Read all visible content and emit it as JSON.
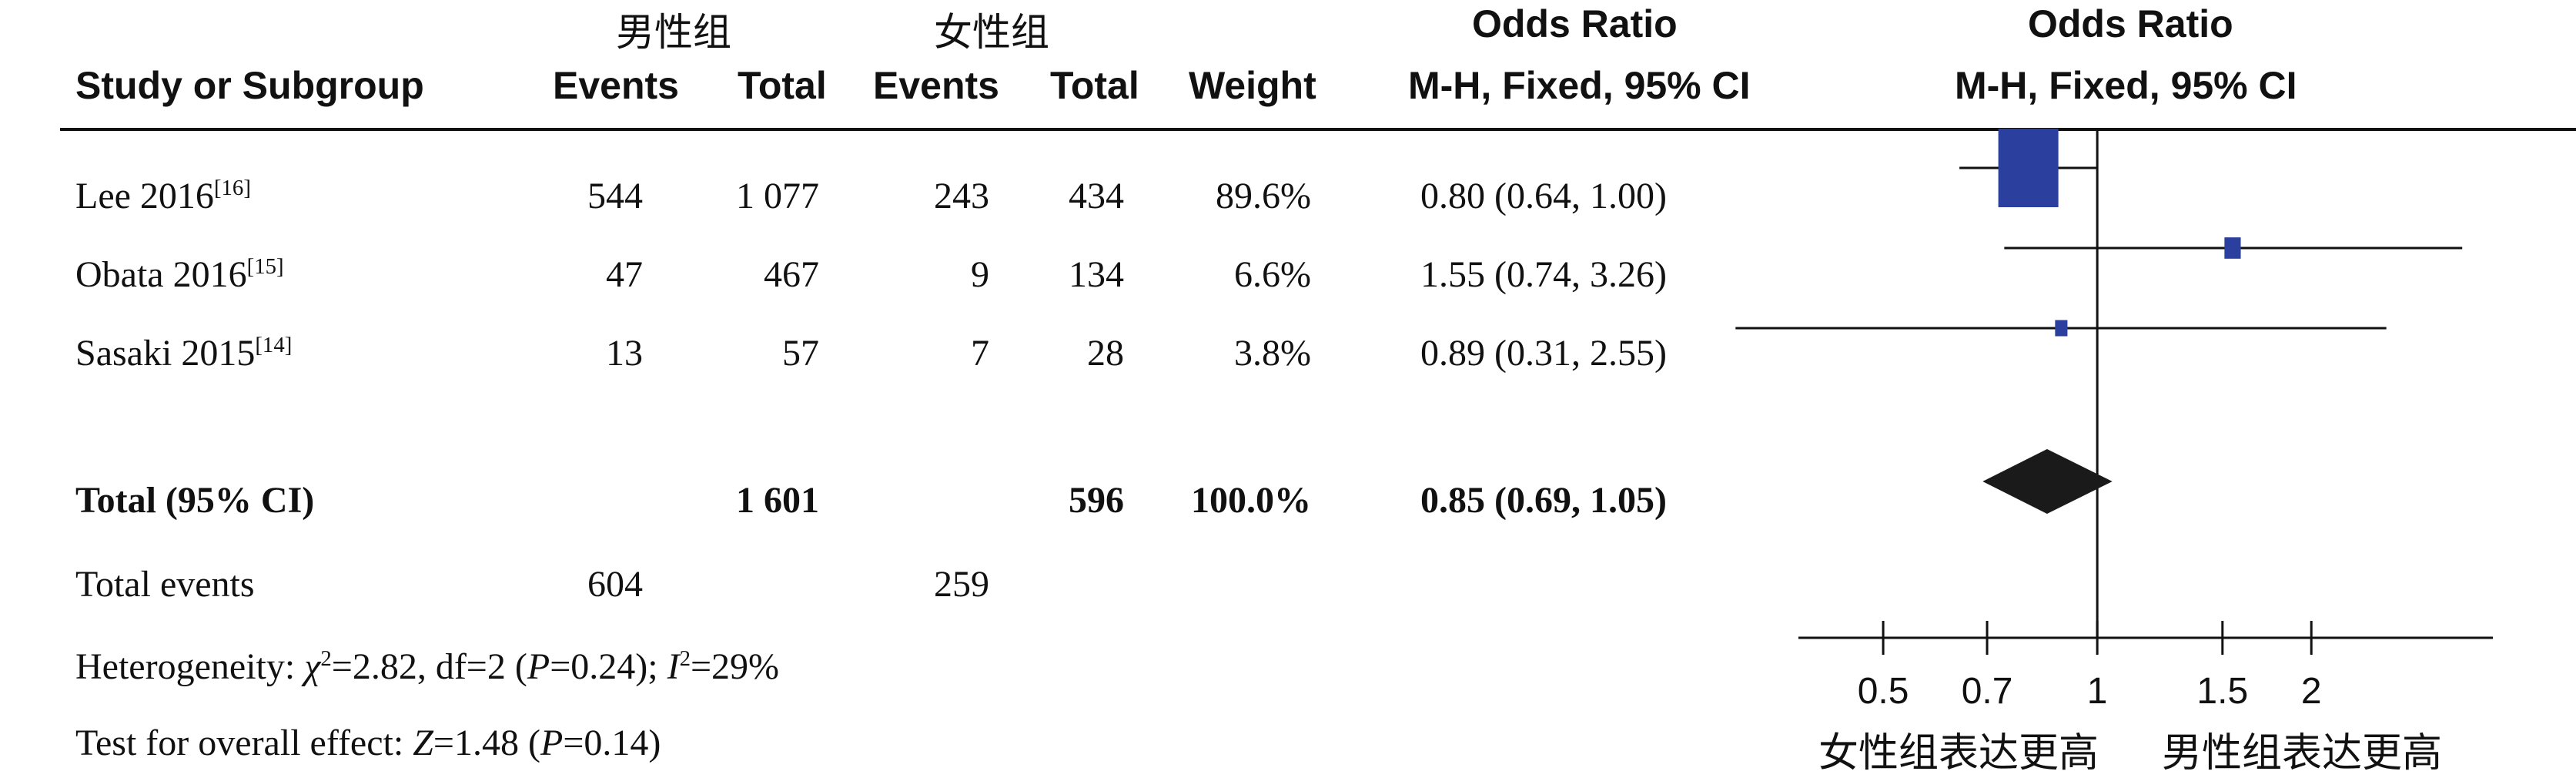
{
  "header": {
    "group1": "男性组",
    "group2": "女性组",
    "col_study": "Study or Subgroup",
    "col_events1": "Events",
    "col_total1": "Total",
    "col_events2": "Events",
    "col_total2": "Total",
    "col_weight": "Weight",
    "or_title_table": "Odds Ratio",
    "or_method_table": "M-H, Fixed, 95% CI",
    "or_title_plot": "Odds Ratio",
    "or_method_plot": "M-H, Fixed, 95% CI"
  },
  "rows": [
    {
      "study": "Lee 2016",
      "ref": "[16]",
      "events1": "544",
      "total1": "1 077",
      "events2": "243",
      "total2": "434",
      "weight": "89.6%",
      "or_text": "0.80 (0.64, 1.00)"
    },
    {
      "study": "Obata 2016",
      "ref": "[15]",
      "events1": "47",
      "total1": "467",
      "events2": "9",
      "total2": "134",
      "weight": "6.6%",
      "or_text": "1.55 (0.74, 3.26)"
    },
    {
      "study": "Sasaki 2015",
      "ref": "[14]",
      "events1": "13",
      "total1": "57",
      "events2": "7",
      "total2": "28",
      "weight": "3.8%",
      "or_text": "0.89 (0.31, 2.55)"
    }
  ],
  "total": {
    "label": "Total (95% CI)",
    "total1": "1 601",
    "total2": "596",
    "weight": "100.0%",
    "or_text": "0.85 (0.69, 1.05)"
  },
  "total_events": {
    "label": "Total events",
    "events1": "604",
    "events2": "259"
  },
  "heterogeneity": {
    "prefix": "Heterogeneity: ",
    "chi": "χ",
    "chi_rest": "=2.82, df=2 (",
    "p": "P",
    "p_rest": "=0.24); ",
    "i": "I",
    "i_rest": "=29%"
  },
  "overall": {
    "prefix": "Test for overall effect: ",
    "z": "Z",
    "z_rest": "=1.48 (",
    "p": "P",
    "p_rest": "=0.14)"
  },
  "axis_captions": {
    "left": "女性组表达更高",
    "right": "男性组表达更高"
  },
  "colors": {
    "square": "#2a3f9e",
    "diamond": "#1a1a1a",
    "line": "#111111"
  },
  "chart_data": {
    "type": "forest",
    "x_scale": "log",
    "xlim": [
      0.38,
      3.6
    ],
    "x_ticks": [
      0.5,
      0.7,
      1,
      1.5,
      2
    ],
    "x_tick_labels": [
      "0.5",
      "0.7",
      "1",
      "1.5",
      "2"
    ],
    "null_line": 1,
    "studies": [
      {
        "name": "Lee 2016",
        "or": 0.8,
        "ci_low": 0.64,
        "ci_high": 1.0,
        "weight": 89.6
      },
      {
        "name": "Obata 2016",
        "or": 1.55,
        "ci_low": 0.74,
        "ci_high": 3.26,
        "weight": 6.6
      },
      {
        "name": "Sasaki 2015",
        "or": 0.89,
        "ci_low": 0.31,
        "ci_high": 2.55,
        "weight": 3.8
      }
    ],
    "pooled": {
      "or": 0.85,
      "ci_low": 0.69,
      "ci_high": 1.05
    }
  }
}
